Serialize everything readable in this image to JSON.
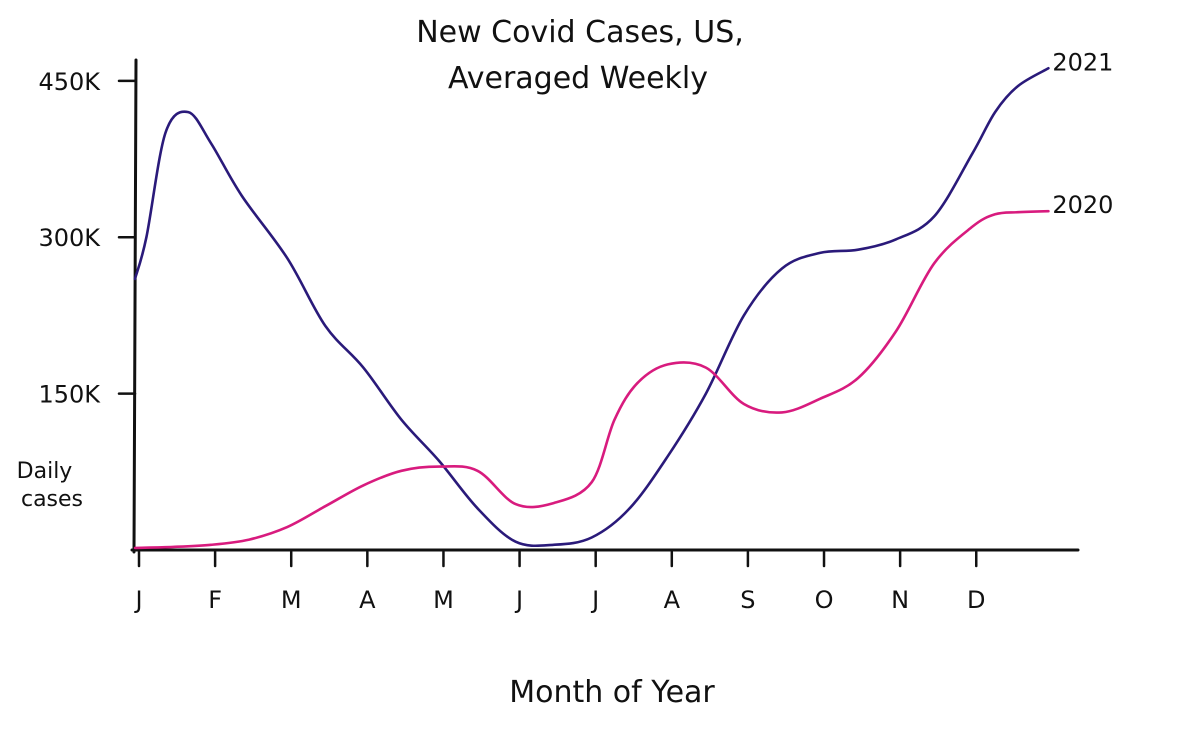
{
  "chart_data": {
    "type": "line",
    "title": "New Covid Cases, US,",
    "subtitle": "Averaged Weekly",
    "xlabel": "Month of Year",
    "ylabel": "Daily cases",
    "yticks": [
      {
        "value": 150000,
        "label": "150K"
      },
      {
        "value": 300000,
        "label": "300K"
      },
      {
        "value": 450000,
        "label": "450K"
      }
    ],
    "ylim": [
      0,
      470000
    ],
    "xlim": [
      0,
      12.35
    ],
    "xticks": [
      {
        "value": 0,
        "label": "J"
      },
      {
        "value": 1,
        "label": "F"
      },
      {
        "value": 2,
        "label": "M"
      },
      {
        "value": 3,
        "label": "A"
      },
      {
        "value": 4,
        "label": "M"
      },
      {
        "value": 5,
        "label": "J"
      },
      {
        "value": 6,
        "label": "J"
      },
      {
        "value": 7,
        "label": "A"
      },
      {
        "value": 8,
        "label": "S"
      },
      {
        "value": 9,
        "label": "O"
      },
      {
        "value": 10,
        "label": "N"
      },
      {
        "value": 11,
        "label": "D"
      }
    ],
    "grid": false,
    "legend": "line-end labels",
    "series": [
      {
        "name": "2021",
        "color": "#2a1a7a",
        "x": [
          0,
          0.15,
          0.4,
          0.7,
          1.0,
          1.4,
          2.0,
          2.5,
          3.0,
          3.5,
          4.0,
          4.5,
          5.0,
          5.5,
          6.0,
          6.5,
          7.0,
          7.5,
          8.0,
          8.5,
          9.0,
          9.5,
          10.0,
          10.5,
          11.0,
          11.3,
          11.6,
          12.0
        ],
        "y": [
          260000,
          300000,
          400000,
          420000,
          390000,
          340000,
          280000,
          215000,
          175000,
          125000,
          85000,
          40000,
          8000,
          5000,
          12000,
          40000,
          90000,
          150000,
          225000,
          270000,
          285000,
          288000,
          298000,
          320000,
          380000,
          420000,
          445000,
          462000
        ]
      },
      {
        "name": "2020",
        "color": "#d81b7e",
        "x": [
          0,
          0.5,
          1.0,
          1.5,
          2.0,
          2.5,
          3.0,
          3.5,
          4.0,
          4.5,
          5.0,
          5.5,
          6.0,
          6.3,
          6.6,
          7.0,
          7.5,
          8.0,
          8.5,
          9.0,
          9.5,
          10.0,
          10.5,
          11.0,
          11.3,
          11.6,
          12.0
        ],
        "y": [
          2000,
          3000,
          5000,
          10000,
          22000,
          42000,
          62000,
          76000,
          80000,
          76000,
          44000,
          45000,
          65000,
          125000,
          160000,
          178000,
          175000,
          140000,
          132000,
          145000,
          165000,
          210000,
          275000,
          310000,
          322000,
          324000,
          325000
        ]
      }
    ]
  }
}
